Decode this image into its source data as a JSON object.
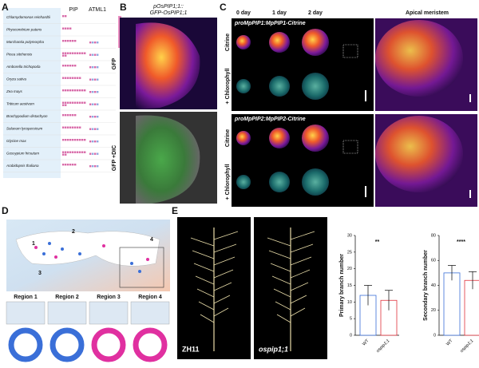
{
  "panel_labels": [
    "A",
    "B",
    "C",
    "D",
    "E"
  ],
  "panel_a": {
    "columns": [
      "PIP",
      "ATML1"
    ],
    "species": [
      "Chlamydomonas reinhardtii",
      "Physcomitrium patens",
      "Marchantia polymorpha",
      "Picea sitchensis",
      "Amborella trichopoda",
      "Oryza sativa",
      "Zea mays",
      "Triticum aestivum",
      "Brachypodium distachyon",
      "Solanum lycopersicum",
      "Glycine max",
      "Gossypium hirsutum",
      "Arabidopsis thaliana"
    ]
  },
  "panel_b": {
    "title_lines": [
      "pOsPIP1;1::",
      "GFP-OsPIP1;1"
    ],
    "row_labels": [
      "GFP",
      "GFP +DIC"
    ]
  },
  "panel_c": {
    "columns": [
      "0 day",
      "1 day",
      "2 day",
      "Apical meristem"
    ],
    "rows": [
      {
        "construct": "proMpPIP1:MpPIP1-Citrine",
        "labels": [
          "Citrine",
          "+ Chlorophyll"
        ]
      },
      {
        "construct": "proMpPIP2:MpPIP2-Citrine",
        "labels": [
          "Citrine",
          "+ Chlorophyll"
        ]
      }
    ]
  },
  "panel_d": {
    "map_labels": [
      "1",
      "2",
      "3",
      "4"
    ],
    "regions": [
      "Region 1",
      "Region 2",
      "Region 3",
      "Region 4"
    ]
  },
  "panel_e": {
    "image_labels": [
      "ZH11",
      "ospip1;1"
    ],
    "charts": [
      {
        "type": "bar",
        "y_label": "Primary branch number",
        "categories": [
          "WT",
          "ospip1;1"
        ],
        "values": [
          12,
          10.5
        ],
        "errors": [
          3,
          3
        ],
        "colors": [
          "#3a6fd8",
          "#e0303a"
        ],
        "ylim": [
          0,
          30
        ],
        "yticks": [
          0,
          5,
          10,
          15,
          20,
          25,
          30
        ],
        "significance": "**"
      },
      {
        "type": "bar",
        "y_label": "Secondary branch number",
        "categories": [
          "WT",
          "ospip1;1"
        ],
        "values": [
          50,
          44
        ],
        "errors": [
          6,
          7
        ],
        "colors": [
          "#3a6fd8",
          "#e0303a"
        ],
        "ylim": [
          0,
          80
        ],
        "yticks": [
          0,
          20,
          40,
          60,
          80
        ],
        "significance": "****"
      }
    ]
  }
}
